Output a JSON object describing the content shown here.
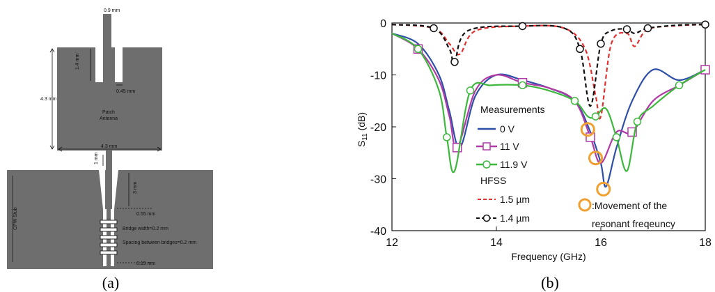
{
  "panel_a": {
    "caption": "(a)",
    "labels": {
      "feed_width": "0.9 mm",
      "slot_depth": "1.4 mm",
      "slot_width": "0.45 mm",
      "patch_height": "4.3 mm",
      "patch_width": "4.3 mm",
      "patch_name_1": "Patch",
      "patch_name_2": "Antenna",
      "feed_gap": "1 mm",
      "taper_length": "3 mm",
      "taper_end": "0.55 mm",
      "cpw_stub": "CPW Stub",
      "bridge_width": "Bridge width=0.2 mm",
      "bridge_spacing": "Spacing between bridges=0.2 mm",
      "line_gap": "0.15 mm"
    },
    "colors": {
      "metal": "#6e6e6e",
      "gap": "#ffffff"
    }
  },
  "panel_b": {
    "caption": "(b)",
    "legend": {
      "group1": "Measurements",
      "s0": "0 V",
      "s11": "11 V",
      "s119": "11.9 V",
      "group2": "HFSS",
      "h15": "1.5 µm",
      "h14": "1.4 µm",
      "marker_note_1": ":Movement of the",
      "marker_note_2": "resonant freqeuncy"
    }
  },
  "chart_data": {
    "type": "line",
    "xlabel": "Frequency (GHz)",
    "ylabel_main": "S",
    "ylabel_sub": "11",
    "ylabel_unit": " (dB)",
    "xlim": [
      12,
      18
    ],
    "ylim": [
      -40,
      0
    ],
    "xticks": [
      "12",
      "14",
      "16",
      "18"
    ],
    "yticks": [
      "0",
      "-10",
      "-20",
      "-30",
      "-40"
    ],
    "series": [
      {
        "name": "0 V",
        "style": "solid",
        "color": "#2e4fa8",
        "marker": "none",
        "x": [
          12,
          12.5,
          12.9,
          13.1,
          13.3,
          13.6,
          14.0,
          14.5,
          15.0,
          15.5,
          15.8,
          16.0,
          16.1,
          16.3,
          16.6,
          17.0,
          17.5,
          18
        ],
        "y": [
          -2,
          -4,
          -10,
          -17,
          -24,
          -14,
          -10,
          -11,
          -12.5,
          -15,
          -21,
          -27,
          -31.5,
          -24,
          -15,
          -9,
          -11,
          -9
        ]
      },
      {
        "name": "11 V",
        "style": "solid",
        "color": "#b03aa6",
        "marker": "square",
        "x": [
          12,
          12.5,
          12.9,
          13.1,
          13.25,
          13.6,
          14.0,
          14.5,
          15.0,
          15.5,
          15.8,
          16.0,
          16.3,
          16.6,
          17.0,
          17.5,
          18
        ],
        "y": [
          -2,
          -5,
          -11,
          -18,
          -24,
          -13,
          -10,
          -11.5,
          -12.5,
          -15,
          -22,
          -27,
          -21,
          -21,
          -15,
          -12,
          -9
        ]
      },
      {
        "name": "11.9 V",
        "style": "solid",
        "color": "#3db83d",
        "marker": "circle",
        "x": [
          12,
          12.5,
          12.9,
          13.05,
          13.2,
          13.5,
          13.9,
          14.5,
          15.0,
          15.5,
          15.75,
          15.9,
          16.1,
          16.3,
          16.5,
          16.7,
          17.0,
          17.5,
          18
        ],
        "y": [
          -2,
          -5,
          -13,
          -22,
          -28.5,
          -13,
          -12,
          -12,
          -13,
          -15,
          -18,
          -18,
          -16.5,
          -22,
          -28.5,
          -19,
          -16,
          -12,
          -9
        ]
      },
      {
        "name": "1.5 µm",
        "style": "dashed",
        "color": "#e23030",
        "marker": "none",
        "x": [
          12,
          12.8,
          13.1,
          13.3,
          13.6,
          14.5,
          15.3,
          15.7,
          15.9,
          16.0,
          16.2,
          16.5,
          16.65,
          16.9,
          17.5,
          18
        ],
        "y": [
          -0.3,
          -1,
          -4,
          -6,
          -1.5,
          -0.6,
          -1,
          -5,
          -14,
          -18,
          -4,
          -2,
          -4.5,
          -1.2,
          -0.5,
          -0.3
        ]
      },
      {
        "name": "1.4 µm",
        "style": "dashed",
        "color": "#111111",
        "marker": "circle",
        "x": [
          12,
          12.8,
          13.1,
          13.2,
          13.45,
          14.5,
          15.3,
          15.6,
          15.8,
          16.0,
          16.2,
          16.5,
          16.65,
          16.9,
          17.5,
          18
        ],
        "y": [
          -0.3,
          -1,
          -5,
          -7.5,
          -1.5,
          -0.6,
          -1,
          -5,
          -16,
          -4,
          -1.5,
          -1.2,
          -2,
          -1,
          -0.4,
          -0.3
        ]
      }
    ],
    "annotation_markers": [
      {
        "x": 15.75,
        "y": -20.5
      },
      {
        "x": 15.9,
        "y": -26
      },
      {
        "x": 16.05,
        "y": -32
      }
    ]
  }
}
